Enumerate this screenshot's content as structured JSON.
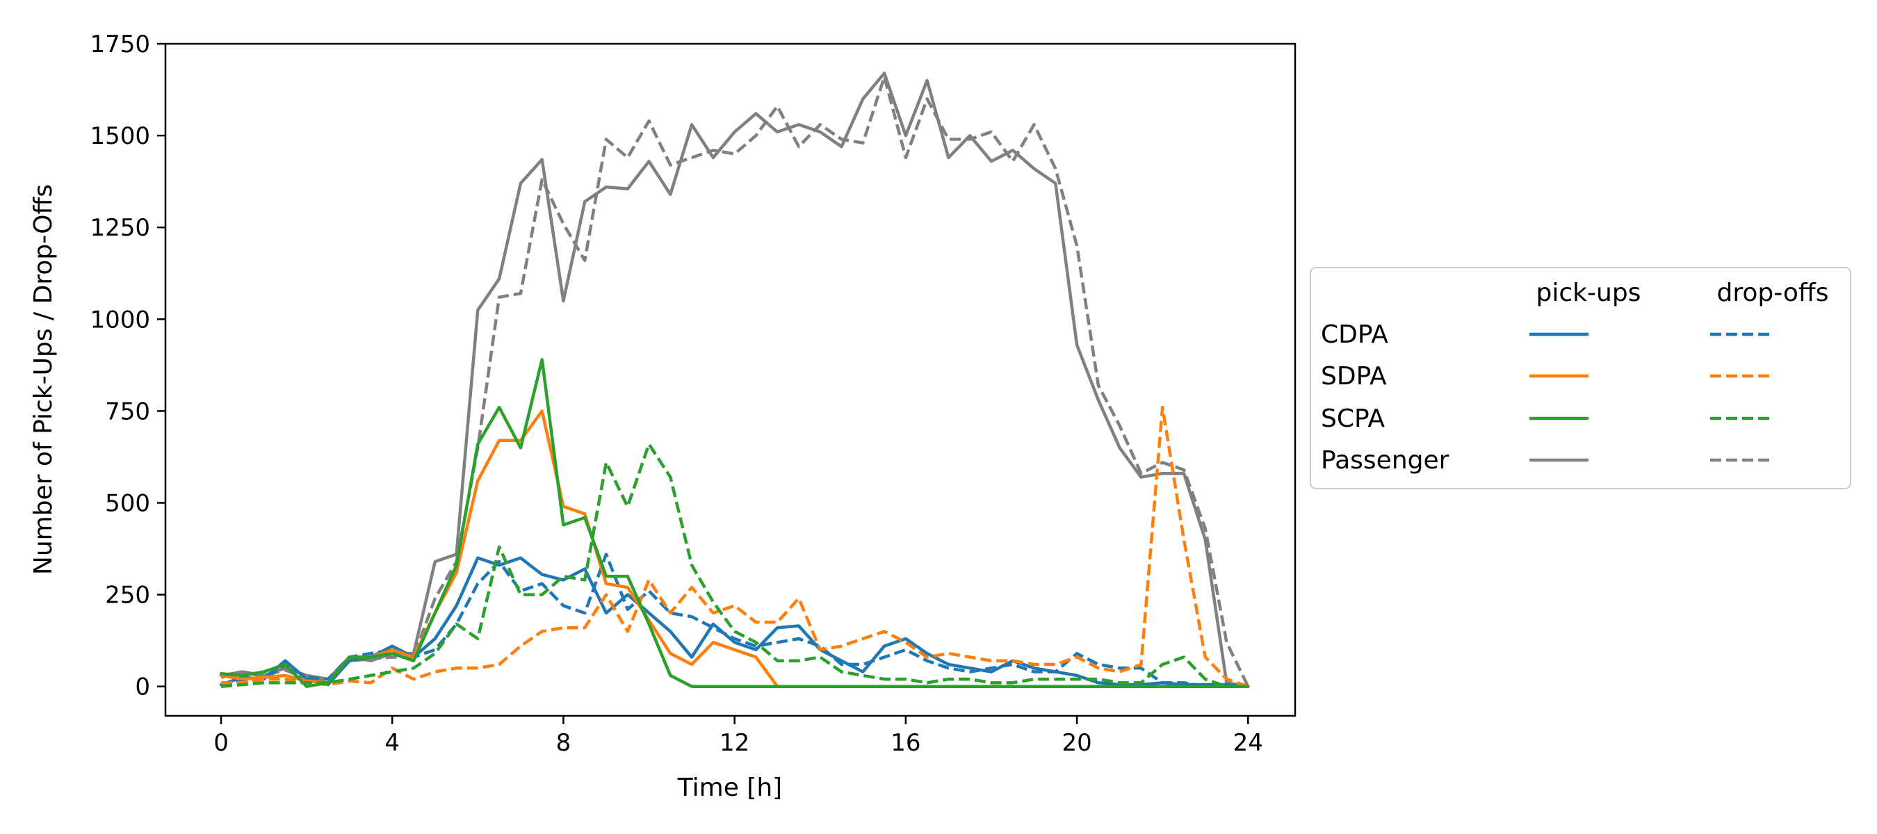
{
  "chart_data": {
    "type": "line",
    "xlabel": "Time [h]",
    "ylabel": "Number of Pick-Ups / Drop-Offs",
    "xlim": [
      -1.3,
      25.1
    ],
    "ylim": [
      -80,
      1750
    ],
    "xticks": [
      0,
      4,
      8,
      12,
      16,
      20,
      24
    ],
    "yticks": [
      0,
      250,
      500,
      750,
      1000,
      1250,
      1500,
      1750
    ],
    "legend": {
      "placement": "right, outside plot",
      "col_headers": [
        "pick-ups",
        "drop-offs"
      ],
      "rows": [
        "CDPA",
        "SDPA",
        "SCPA",
        "Passenger"
      ]
    },
    "x": [
      0,
      0.5,
      1,
      1.5,
      2,
      2.5,
      3,
      3.5,
      4,
      4.5,
      5,
      5.5,
      6,
      6.5,
      7,
      7.5,
      8,
      8.5,
      9,
      9.5,
      10,
      10.5,
      11,
      11.5,
      12,
      12.5,
      13,
      13.5,
      14,
      14.5,
      15,
      15.5,
      16,
      16.5,
      17,
      17.5,
      18,
      18.5,
      19,
      19.5,
      20,
      20.5,
      21,
      21.5,
      22,
      22.5,
      23,
      23.5,
      24
    ],
    "series": [
      {
        "name": "CDPA",
        "kind": "pick-ups",
        "color": "#1f77b4",
        "dashed": false,
        "values": [
          5,
          25,
          20,
          70,
          20,
          5,
          70,
          80,
          110,
          80,
          130,
          220,
          350,
          330,
          350,
          305,
          290,
          320,
          200,
          250,
          200,
          150,
          80,
          170,
          120,
          100,
          160,
          165,
          100,
          70,
          40,
          110,
          130,
          90,
          60,
          50,
          40,
          70,
          50,
          40,
          30,
          10,
          5,
          5,
          10,
          5,
          5,
          5,
          0
        ]
      },
      {
        "name": "CDPA",
        "kind": "drop-offs",
        "color": "#1f77b4",
        "dashed": true,
        "values": [
          0,
          15,
          20,
          60,
          25,
          20,
          80,
          90,
          100,
          80,
          100,
          170,
          280,
          340,
          260,
          280,
          220,
          200,
          360,
          210,
          260,
          200,
          190,
          160,
          130,
          110,
          120,
          130,
          110,
          60,
          60,
          80,
          100,
          70,
          50,
          40,
          50,
          60,
          40,
          40,
          90,
          60,
          50,
          50,
          10,
          10,
          0,
          0,
          0
        ]
      },
      {
        "name": "SDPA",
        "kind": "pick-ups",
        "color": "#ff7f0e",
        "dashed": false,
        "values": [
          30,
          20,
          25,
          30,
          15,
          10,
          80,
          80,
          100,
          80,
          200,
          310,
          560,
          670,
          670,
          750,
          490,
          470,
          280,
          270,
          180,
          90,
          60,
          120,
          100,
          80,
          0,
          0,
          0,
          0,
          0,
          0,
          0,
          0,
          0,
          0,
          0,
          0,
          0,
          0,
          0,
          0,
          0,
          0,
          0,
          0,
          0,
          0,
          0
        ]
      },
      {
        "name": "SDPA",
        "kind": "drop-offs",
        "color": "#ff7f0e",
        "dashed": true,
        "values": [
          10,
          10,
          20,
          20,
          10,
          5,
          15,
          10,
          50,
          20,
          40,
          50,
          50,
          60,
          110,
          150,
          160,
          160,
          250,
          150,
          290,
          200,
          270,
          200,
          220,
          175,
          175,
          240,
          100,
          110,
          130,
          150,
          120,
          80,
          90,
          80,
          70,
          70,
          60,
          60,
          80,
          50,
          40,
          60,
          760,
          400,
          80,
          20,
          0
        ]
      },
      {
        "name": "SCPA",
        "kind": "pick-ups",
        "color": "#2ca02c",
        "dashed": false,
        "values": [
          35,
          30,
          40,
          60,
          0,
          10,
          80,
          80,
          90,
          70,
          200,
          330,
          660,
          760,
          650,
          890,
          440,
          460,
          300,
          300,
          170,
          30,
          0,
          0,
          0,
          0,
          0,
          0,
          0,
          0,
          0,
          0,
          0,
          0,
          0,
          0,
          0,
          0,
          0,
          0,
          0,
          0,
          0,
          0,
          0,
          0,
          0,
          0,
          0
        ]
      },
      {
        "name": "SCPA",
        "kind": "drop-offs",
        "color": "#2ca02c",
        "dashed": true,
        "values": [
          0,
          5,
          10,
          10,
          10,
          10,
          20,
          30,
          40,
          50,
          90,
          170,
          130,
          380,
          250,
          250,
          300,
          290,
          610,
          490,
          660,
          570,
          330,
          230,
          150,
          120,
          70,
          70,
          80,
          40,
          30,
          20,
          20,
          10,
          20,
          20,
          10,
          10,
          20,
          20,
          20,
          20,
          10,
          10,
          60,
          80,
          20,
          0,
          0
        ]
      },
      {
        "name": "Passenger",
        "kind": "pick-ups",
        "color": "#808080",
        "dashed": false,
        "values": [
          30,
          40,
          30,
          50,
          30,
          20,
          80,
          70,
          90,
          90,
          340,
          360,
          1025,
          1110,
          1370,
          1435,
          1050,
          1320,
          1360,
          1355,
          1430,
          1340,
          1530,
          1440,
          1510,
          1560,
          1510,
          1530,
          1510,
          1470,
          1600,
          1670,
          1500,
          1650,
          1440,
          1500,
          1430,
          1460,
          1410,
          1370,
          930,
          780,
          650,
          570,
          580,
          580,
          400,
          10,
          0
        ]
      },
      {
        "name": "Passenger",
        "kind": "drop-offs",
        "color": "#808080",
        "dashed": true,
        "values": [
          25,
          35,
          30,
          45,
          20,
          15,
          70,
          75,
          80,
          80,
          240,
          340,
          650,
          1060,
          1070,
          1380,
          1260,
          1160,
          1490,
          1440,
          1540,
          1420,
          1440,
          1460,
          1450,
          1500,
          1580,
          1470,
          1530,
          1490,
          1480,
          1660,
          1440,
          1600,
          1490,
          1490,
          1510,
          1430,
          1530,
          1410,
          1200,
          820,
          710,
          580,
          610,
          590,
          430,
          120,
          0
        ]
      }
    ]
  }
}
